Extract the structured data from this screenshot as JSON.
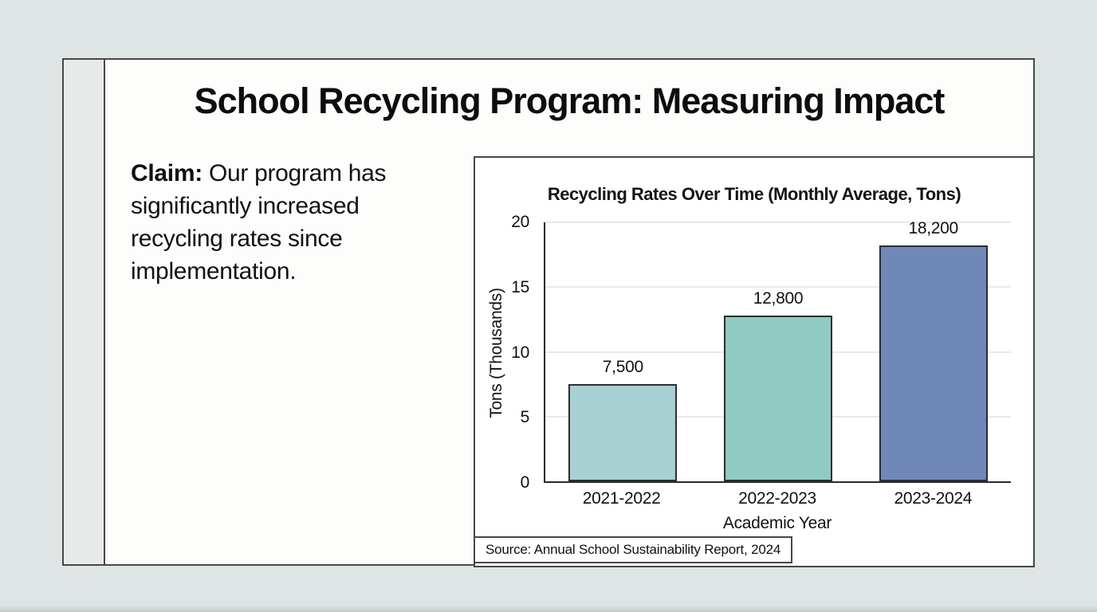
{
  "page": {
    "background_color": "#dfe5e4",
    "slide_background": "#fdfdfc",
    "border_color": "#474747"
  },
  "slide": {
    "title": "School Recycling Program: Measuring Impact",
    "claim_label": "Claim:",
    "claim_text": "Our program has significantly increased recycling rates since implementation."
  },
  "chart_data": {
    "type": "bar",
    "title": "Recycling Rates Over Time (Monthly Average, Tons)",
    "xlabel": "Academic Year",
    "ylabel": "Tons (Thousands)",
    "categories": [
      "2021-2022",
      "2022-2023",
      "2023-2024"
    ],
    "values_tons": [
      7500,
      12800,
      18200
    ],
    "values_thousands": [
      7.5,
      12.8,
      18.2
    ],
    "data_labels": [
      "7,500",
      "12,800",
      "18,200"
    ],
    "bar_colors": [
      "#a8d1d4",
      "#8fcbc2",
      "#7088b8"
    ],
    "bar_edge_color": "#2c2c2c",
    "yticks": [
      0,
      5,
      10,
      15,
      20
    ],
    "ylim": [
      0,
      20
    ],
    "grid": "horizontal",
    "legend": "none",
    "source_note": "Source: Annual School Sustainability Report, 2024"
  }
}
